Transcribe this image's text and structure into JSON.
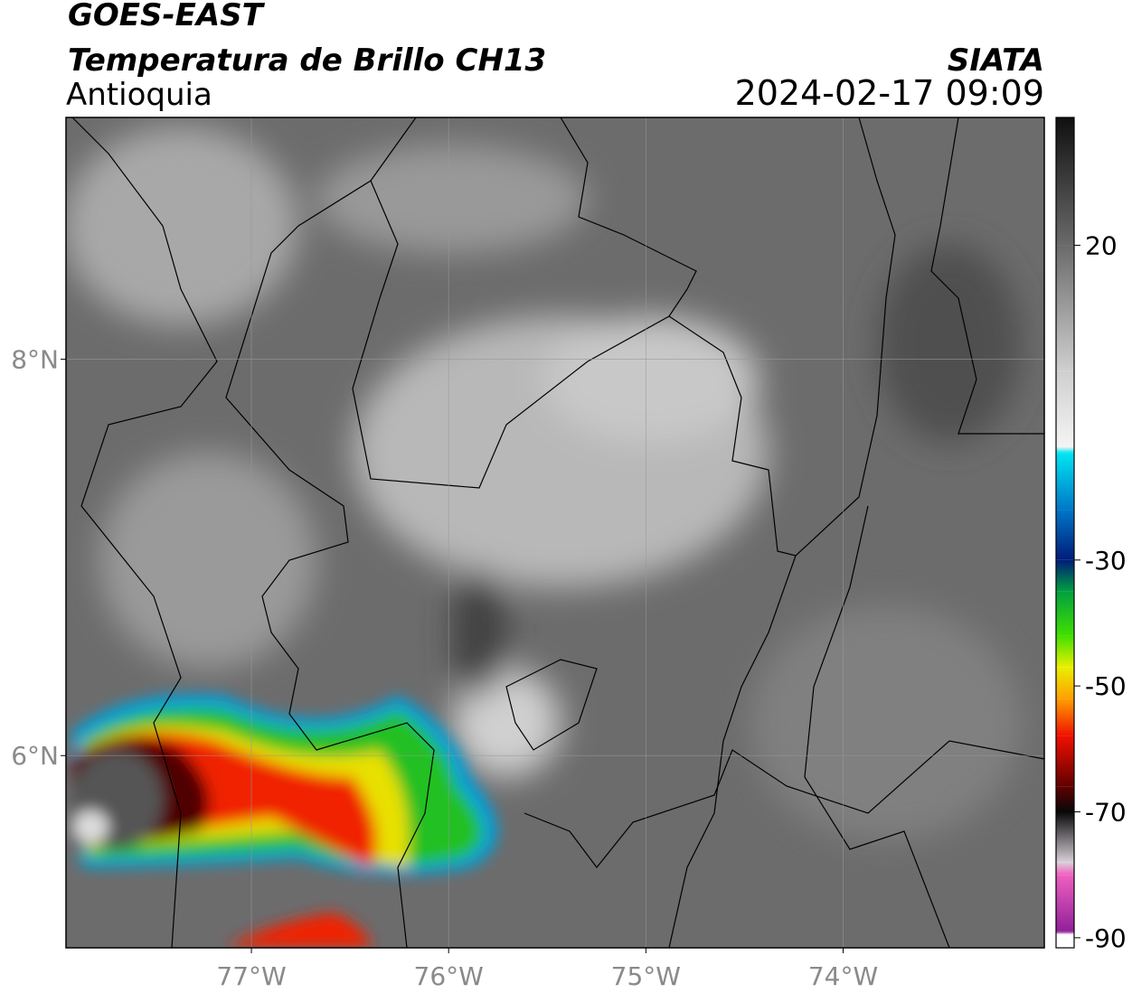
{
  "header": {
    "title": "GOES-EAST",
    "subtitle": "Temperatura de Brillo CH13",
    "region": "Antioquia",
    "agency": "SIATA",
    "datetime": "2024-02-17 09:09"
  },
  "map": {
    "xlim": [
      -77.94,
      -72.98
    ],
    "ylim": [
      5.03,
      9.22
    ],
    "lon_ticks": [
      {
        "value": -77,
        "label": "77°W"
      },
      {
        "value": -76,
        "label": "76°W"
      },
      {
        "value": -75,
        "label": "75°W"
      },
      {
        "value": -74,
        "label": "74°W"
      }
    ],
    "lat_ticks": [
      {
        "value": 8,
        "label": "8°N"
      },
      {
        "value": 6,
        "label": "6°N"
      }
    ]
  },
  "colorbar": {
    "lim": [
      -91.6,
      40.3
    ],
    "ticks": [
      20,
      -30,
      -50,
      -70,
      -90
    ],
    "colormap": [
      {
        "value": 40.3,
        "color": "#101010"
      },
      {
        "value": 20,
        "color": "#6a6a6a"
      },
      {
        "value": 0,
        "color": "#cfcfcf"
      },
      {
        "value": -12,
        "color": "#f4f4f4"
      },
      {
        "value": -13,
        "color": "#00e5f0"
      },
      {
        "value": -22,
        "color": "#0077c8"
      },
      {
        "value": -30,
        "color": "#001c7a"
      },
      {
        "value": -35,
        "color": "#00a040"
      },
      {
        "value": -42,
        "color": "#40e000"
      },
      {
        "value": -47,
        "color": "#e8f000"
      },
      {
        "value": -52,
        "color": "#ffa000"
      },
      {
        "value": -58,
        "color": "#f01000"
      },
      {
        "value": -66,
        "color": "#600000"
      },
      {
        "value": -70,
        "color": "#080808"
      },
      {
        "value": -78,
        "color": "#d8d0d8"
      },
      {
        "value": -80,
        "color": "#f060c0"
      },
      {
        "value": -89,
        "color": "#90209a"
      },
      {
        "value": -89.5,
        "color": "#ffffff"
      },
      {
        "value": -91.6,
        "color": "#ffffff"
      }
    ]
  }
}
